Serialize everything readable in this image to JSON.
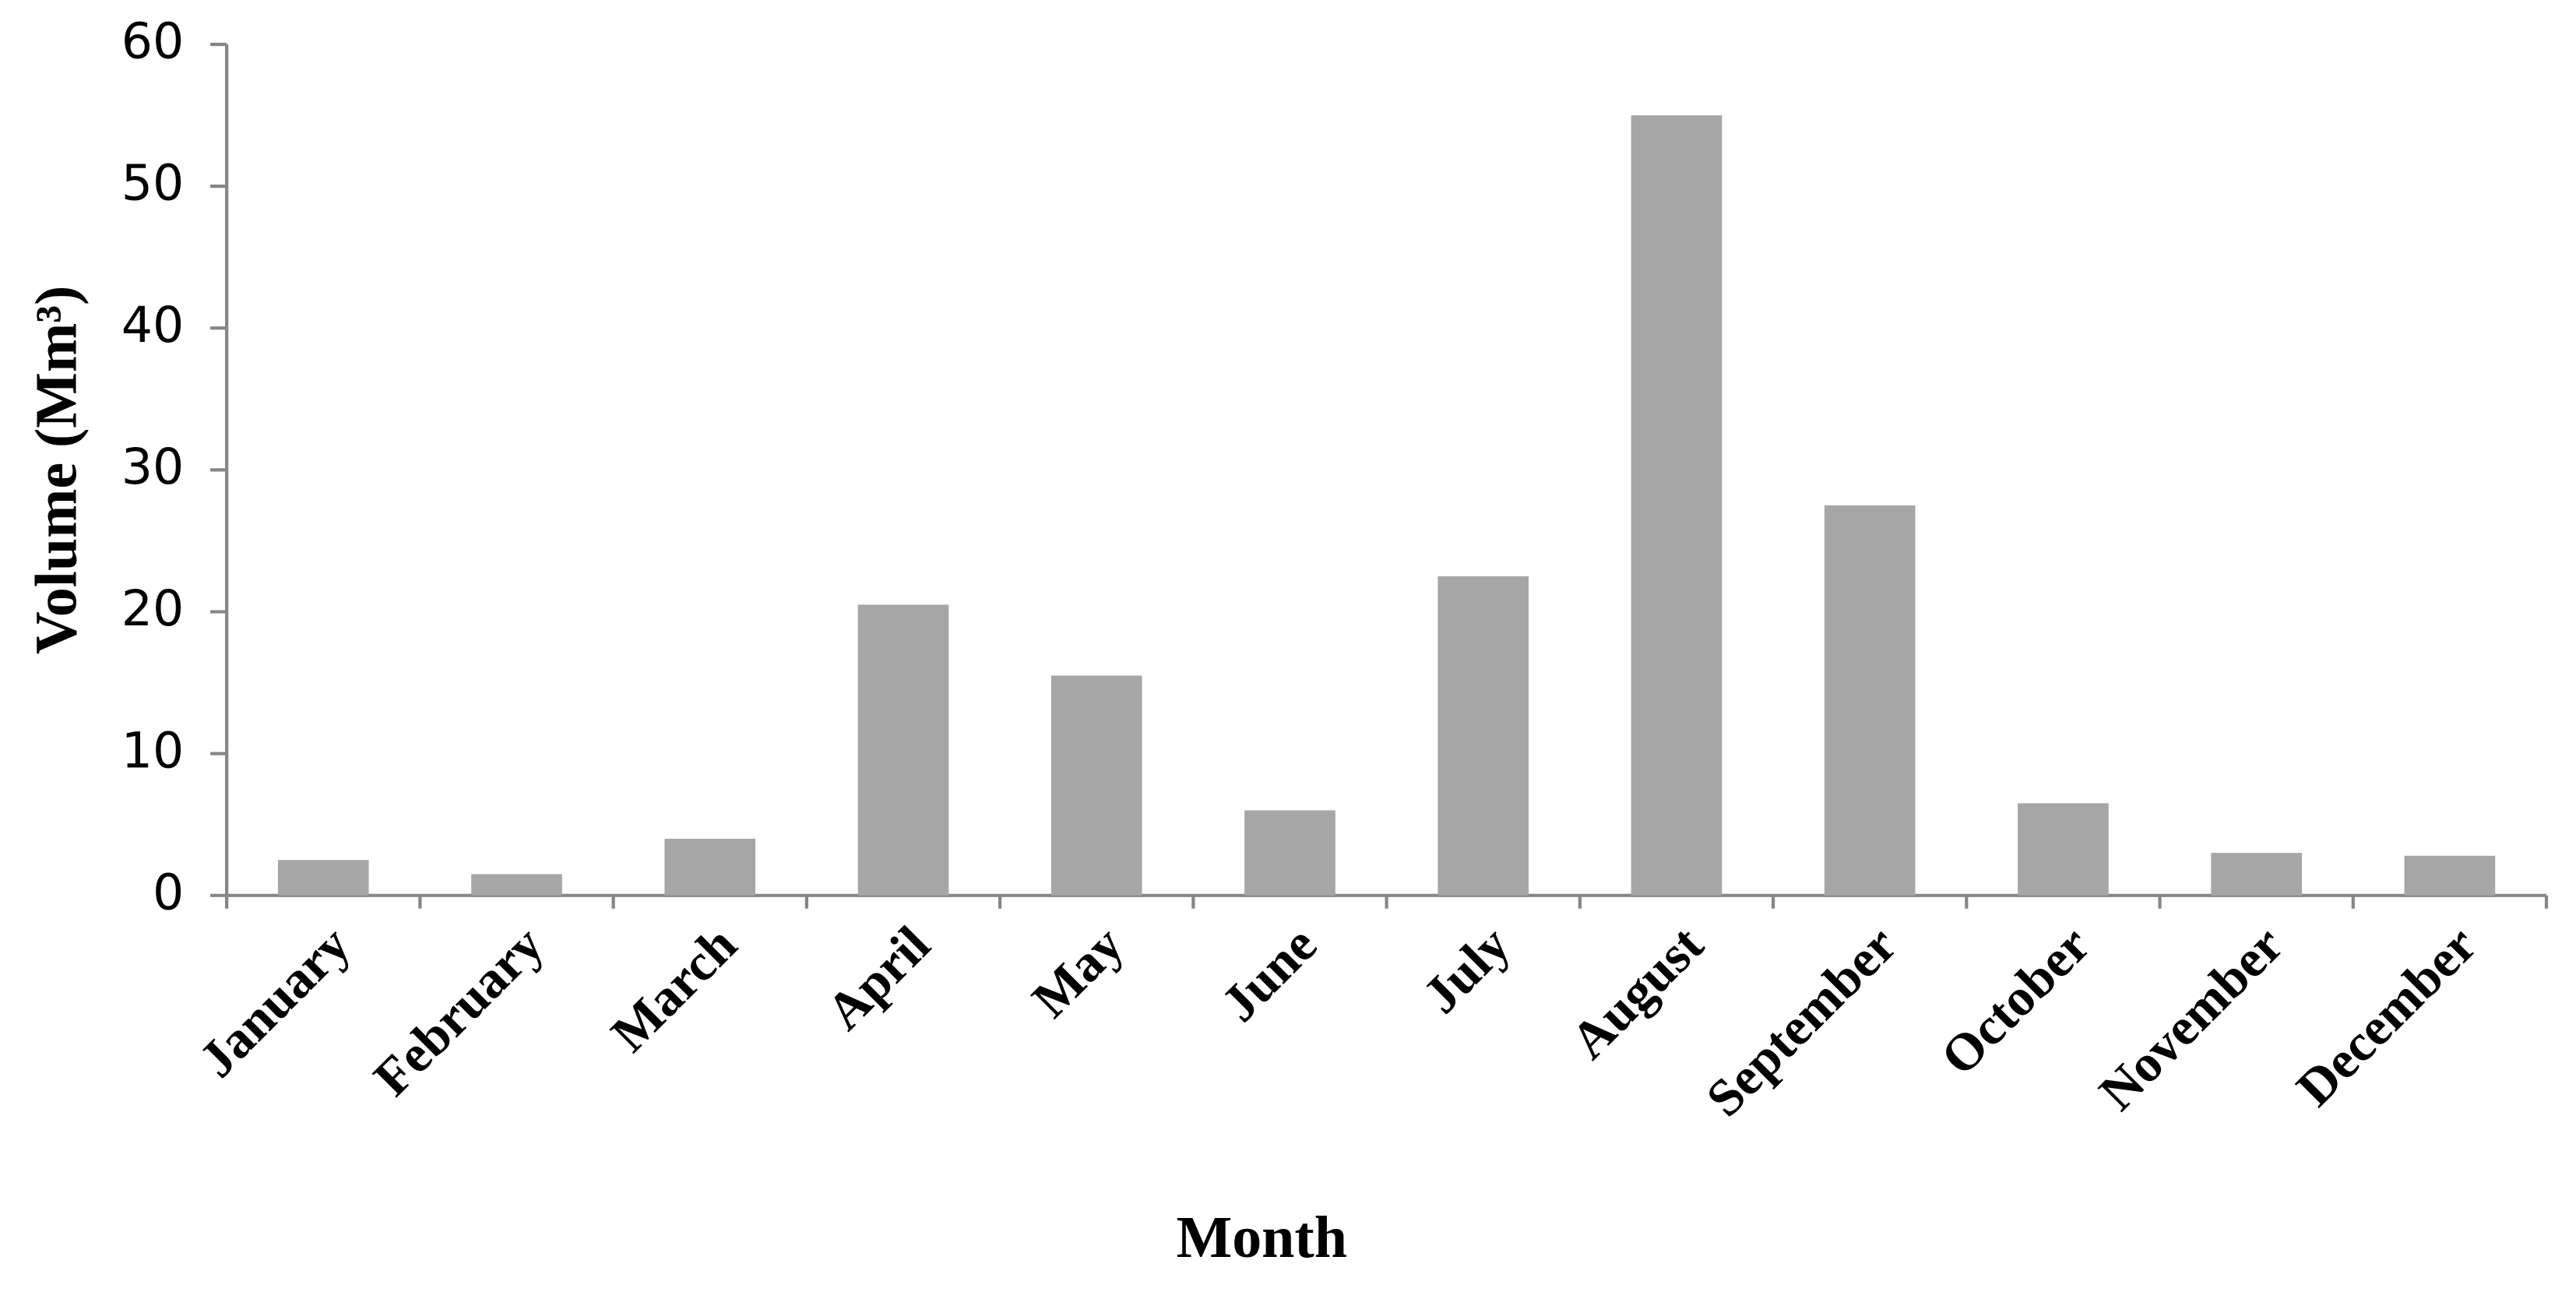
{
  "chart_data": {
    "type": "bar",
    "categories": [
      "January",
      "February",
      "March",
      "April",
      "May",
      "June",
      "July",
      "August",
      "September",
      "October",
      "November",
      "December"
    ],
    "values": [
      2.5,
      1.5,
      4,
      20.5,
      15.5,
      6,
      22.5,
      55,
      27.5,
      6.5,
      3,
      2.8
    ],
    "color": "#a6a6a6",
    "xlabel": "Month",
    "ylabel": "Volume (Mm³)",
    "ylim": [
      0,
      60
    ],
    "yticks": [
      0,
      10,
      20,
      30,
      40,
      50,
      60
    ],
    "grid": false
  }
}
